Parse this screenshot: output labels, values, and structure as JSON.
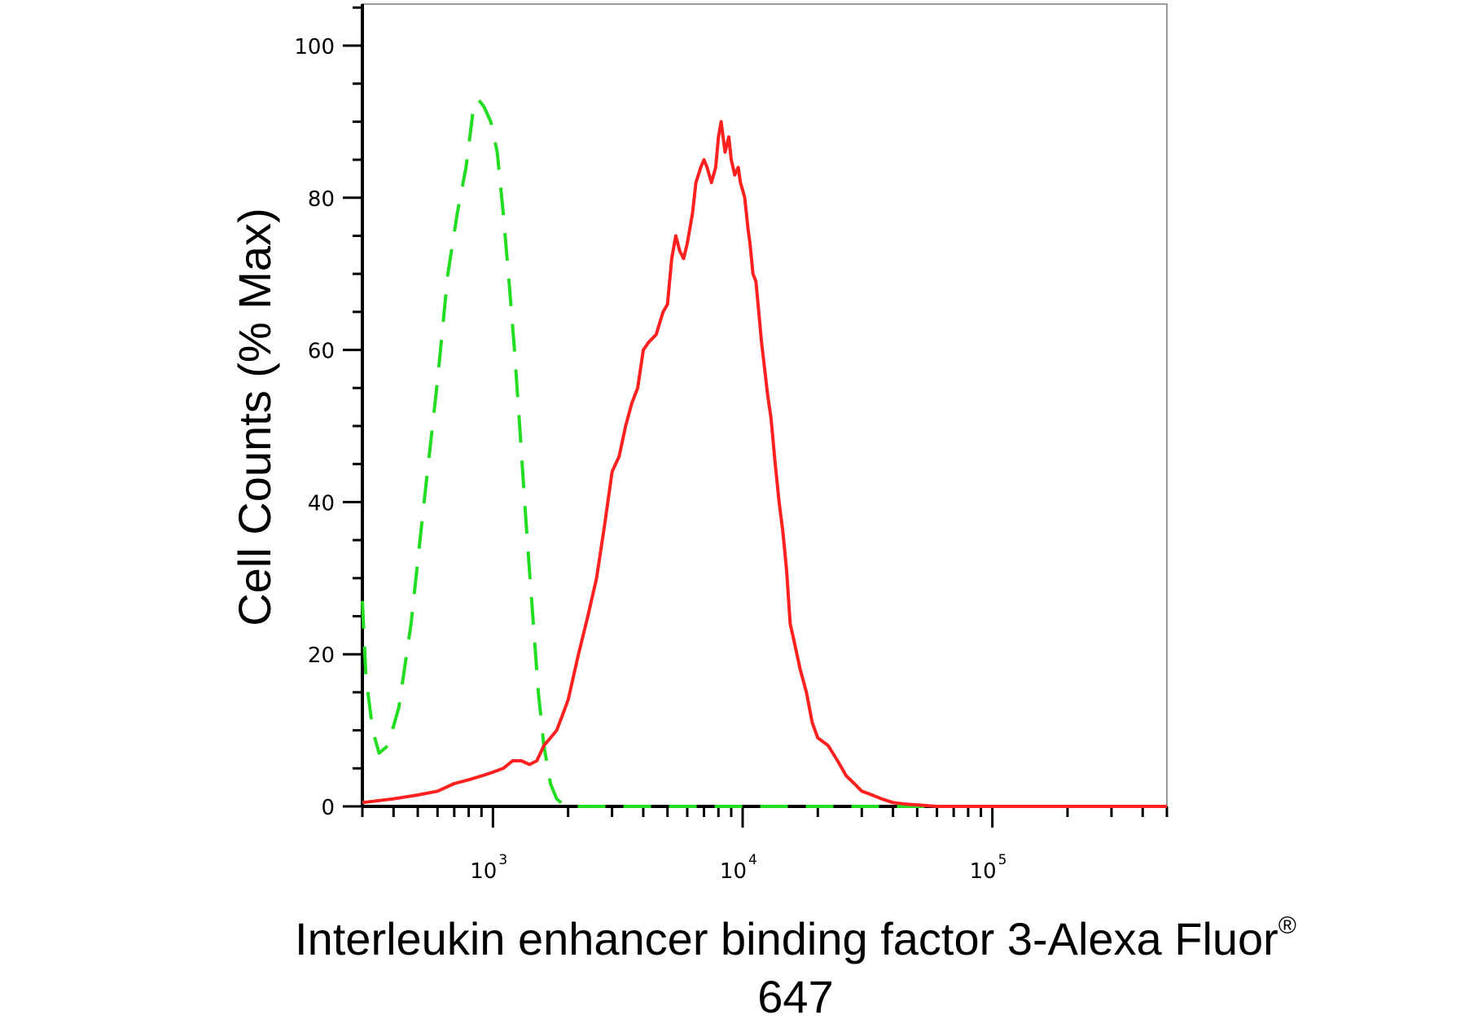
{
  "chart_data": {
    "type": "line",
    "title": "",
    "xlabel": "Interleukin enhancer binding factor 3-Alexa Fluor",
    "xlabel_sup": "®",
    "xlabel_line2": "647",
    "ylabel": "Cell Counts (% Max)",
    "x_scale": "log",
    "xlim": [
      300,
      500000
    ],
    "ylim": [
      0,
      105
    ],
    "x_ticks": [
      {
        "base": "10",
        "exp": "3",
        "value": 1000
      },
      {
        "base": "10",
        "exp": "4",
        "value": 10000
      },
      {
        "base": "10",
        "exp": "5",
        "value": 100000
      }
    ],
    "y_ticks": [
      {
        "label": "0",
        "value": 0
      },
      {
        "label": "20",
        "value": 20
      },
      {
        "label": "40",
        "value": 40
      },
      {
        "label": "60",
        "value": 60
      },
      {
        "label": "80",
        "value": 80
      },
      {
        "label": "100",
        "value": 100
      }
    ],
    "grid": false,
    "legend": "none",
    "series": [
      {
        "style": "dashed",
        "color": "#22dd22",
        "x": [
          300,
          310,
          330,
          350,
          380,
          420,
          470,
          530,
          600,
          660,
          720,
          780,
          830,
          870,
          920,
          980,
          1040,
          1100,
          1160,
          1220,
          1280,
          1340,
          1400,
          1460,
          1520,
          1600,
          1700,
          1800,
          1950,
          2200,
          3000,
          5000,
          10000,
          30000,
          100000,
          500000
        ],
        "y": [
          27,
          17,
          10,
          7,
          8,
          13,
          24,
          40,
          56,
          70,
          78,
          84,
          91,
          93,
          92,
          90,
          86,
          78,
          69,
          60,
          50,
          40,
          31,
          23,
          15,
          8,
          3,
          1,
          0,
          0,
          0,
          0,
          0,
          0,
          0,
          0
        ]
      },
      {
        "style": "solid",
        "color": "#ff2020",
        "x": [
          300,
          400,
          500,
          600,
          700,
          800,
          900,
          1000,
          1100,
          1200,
          1300,
          1400,
          1500,
          1600,
          1700,
          1800,
          1900,
          2000,
          2200,
          2400,
          2600,
          2800,
          3000,
          3200,
          3400,
          3600,
          3800,
          4000,
          4200,
          4500,
          4800,
          5000,
          5200,
          5400,
          5600,
          5800,
          6000,
          6300,
          6500,
          6800,
          7000,
          7200,
          7500,
          7800,
          8000,
          8200,
          8500,
          8800,
          9000,
          9300,
          9600,
          9800,
          10000,
          10200,
          10500,
          10700,
          11000,
          11300,
          11600,
          11900,
          12200,
          12600,
          13000,
          13500,
          14000,
          14500,
          15000,
          15500,
          16000,
          17000,
          18000,
          19000,
          20000,
          22000,
          24000,
          26000,
          28000,
          30000,
          33000,
          36000,
          40000,
          45000,
          50000,
          55000,
          60000,
          70000,
          80000,
          90000,
          100000,
          120000,
          150000,
          200000,
          300000,
          500000
        ],
        "y": [
          0.5,
          1,
          1.5,
          2,
          3,
          3.5,
          4,
          4.5,
          5,
          6,
          6,
          5.5,
          6,
          8,
          9,
          10,
          12,
          14,
          20,
          25,
          30,
          37,
          44,
          46,
          50,
          53,
          55,
          60,
          61,
          62,
          65,
          66,
          72,
          75,
          73,
          72,
          74,
          78,
          82,
          84,
          85,
          84,
          82,
          84,
          88,
          90,
          86,
          88,
          85,
          83,
          84,
          82,
          81,
          80,
          76,
          74,
          70,
          69,
          65,
          61,
          58,
          54,
          51,
          45,
          40,
          36,
          31,
          24,
          22,
          18,
          15,
          11,
          9,
          8,
          6,
          4,
          3,
          2,
          1.5,
          1,
          0.5,
          0.3,
          0.2,
          0.1,
          0,
          0,
          0,
          0,
          0,
          0,
          0,
          0,
          0,
          0
        ]
      }
    ]
  }
}
